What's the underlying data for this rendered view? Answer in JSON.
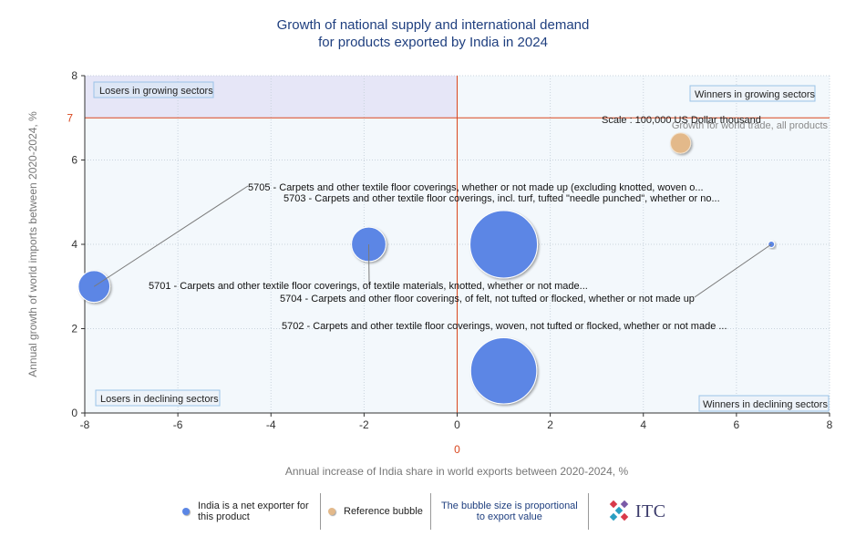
{
  "chart_data": {
    "type": "bubble",
    "title": [
      "Growth of national supply and international demand",
      "for products exported by India in 2024"
    ],
    "xlabel": "Annual increase of India share in world exports between 2020-2024, %",
    "ylabel": "Annual growth of world imports between 2020-2024, %",
    "xlim": [
      -8,
      8
    ],
    "ylim": [
      0,
      8
    ],
    "xticks": [
      "-8",
      "-6",
      "-4",
      "-2",
      "0",
      "2",
      "4",
      "6",
      "8"
    ],
    "yticks": [
      "0",
      "2",
      "4",
      "6",
      "8"
    ],
    "ref_x_label": "0",
    "ref_y_label": "7",
    "ref_x": 0,
    "ref_y": 7,
    "scale_label": "Scale : 100,000 US Dollar thousand",
    "reference_label": "Growth for world trade, all products",
    "quadrants": {
      "top_left": "Losers in growing sectors",
      "top_right": "Winners in growing sectors",
      "bottom_left": "Losers in declining sectors",
      "bottom_right": "Winners in declining sectors"
    },
    "grid": true,
    "colors": {
      "exporter": "#5b86e5",
      "reference": "#e3b98a",
      "ref_line": "#d9471e",
      "quadrant_shade": "#e6e6f7",
      "plot_bg": "#f3f8fc"
    },
    "series": [
      {
        "name": "India is a net exporter for this product",
        "points": [
          {
            "label": "5705 - Carpets and other textile floor coverings, whether or not made up (excluding knotted, woven o...",
            "x": -7.8,
            "y": 3.0,
            "size": 0.22
          },
          {
            "label": "5703 - Carpets and other textile floor coverings, incl. turf, tufted \"needle punched\", whether or no...",
            "x": 1.0,
            "y": 4.0,
            "size": 1.0
          },
          {
            "label": "5701 - Carpets and other textile floor coverings, of textile materials, knotted, whether or not made...",
            "x": -1.9,
            "y": 4.0,
            "size": 0.26
          },
          {
            "label": "5704 - Carpets and other floor coverings, of felt, not tufted or flocked, whether or not made up",
            "x": 6.75,
            "y": 4.0,
            "size": 0.004
          },
          {
            "label": "5702 - Carpets and other textile floor coverings, woven, not tufted or flocked, whether or not made ...",
            "x": 1.0,
            "y": 1.0,
            "size": 0.96
          }
        ]
      },
      {
        "name": "Reference bubble",
        "points": [
          {
            "label": "",
            "x": 4.8,
            "y": 6.4,
            "size": 0.09
          }
        ]
      }
    ]
  },
  "legend": {
    "exporter": "India is a net exporter for this product",
    "reference": "Reference bubble",
    "note": "The bubble size is proportional to export value",
    "logo": "ITC"
  }
}
